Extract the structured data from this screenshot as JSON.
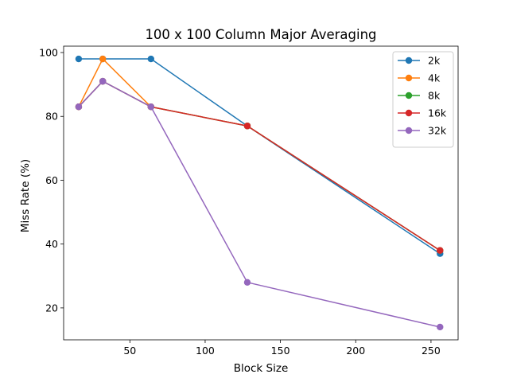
{
  "chart_data": {
    "type": "line",
    "title": "100 x 100 Column Major Averaging",
    "xlabel": "Block Size",
    "ylabel": "Miss Rate (%)",
    "x": [
      16,
      32,
      64,
      128,
      256
    ],
    "xlim": [
      6,
      268
    ],
    "ylim": [
      10,
      102
    ],
    "xticks": [
      50,
      100,
      150,
      200,
      250
    ],
    "yticks": [
      20,
      40,
      60,
      80,
      100
    ],
    "grid": false,
    "legend_position": "top-right",
    "series": [
      {
        "name": "2k",
        "color": "#1f77b4",
        "values": [
          98,
          98,
          98,
          77,
          37
        ]
      },
      {
        "name": "4k",
        "color": "#ff7f0e",
        "values": [
          83,
          98,
          83,
          77,
          38
        ]
      },
      {
        "name": "8k",
        "color": "#2ca02c",
        "values": [
          83,
          91,
          83,
          77,
          38
        ]
      },
      {
        "name": "16k",
        "color": "#d62728",
        "values": [
          83,
          91,
          83,
          77,
          38
        ]
      },
      {
        "name": "32k",
        "color": "#9467bd",
        "values": [
          83,
          91,
          83,
          28,
          14
        ]
      }
    ]
  }
}
